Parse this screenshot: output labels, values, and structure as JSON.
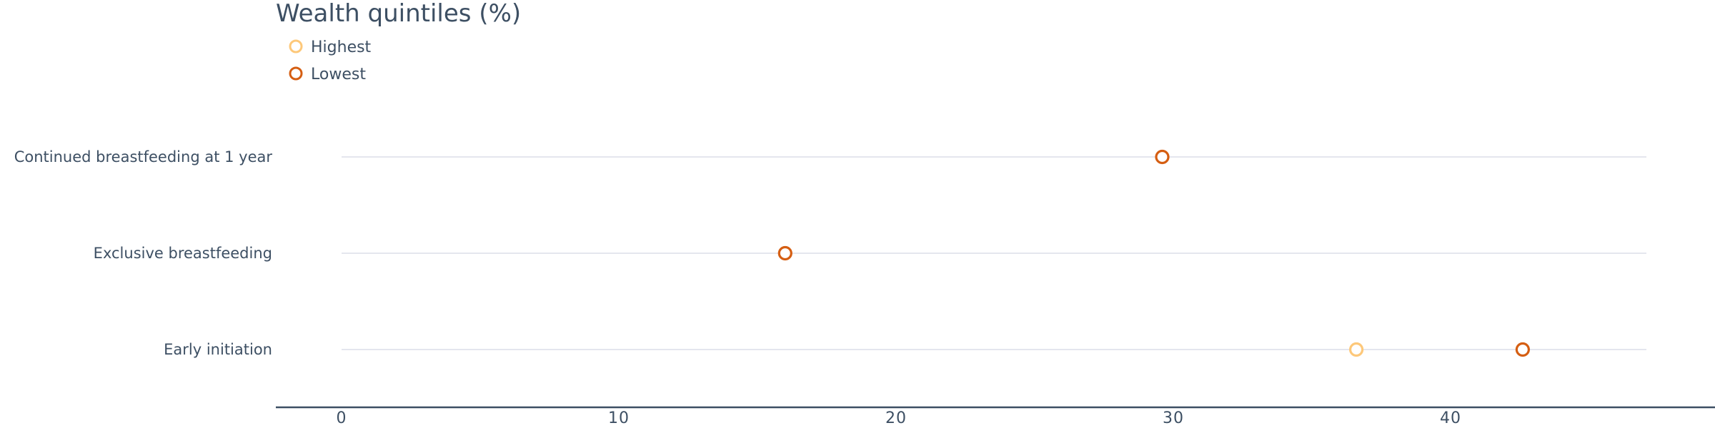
{
  "chart_data": {
    "type": "scatter",
    "title": "Wealth quintiles (%)",
    "categories": [
      "Continued breastfeeding at 1 year",
      "Exclusive breastfeeding",
      "Early initiation"
    ],
    "series": [
      {
        "name": "Highest",
        "color": "#fdc87a",
        "values": [
          null,
          null,
          36.6
        ]
      },
      {
        "name": "Lowest",
        "color": "#d55e12",
        "values": [
          29.6,
          16.0,
          42.6
        ]
      }
    ],
    "xlim": [
      0,
      46.8
    ],
    "xticks": [
      0,
      10,
      20,
      30,
      40
    ],
    "xlabel": "",
    "ylabel": "",
    "grid": true,
    "legend": "top-left",
    "marker": "open-circle"
  }
}
